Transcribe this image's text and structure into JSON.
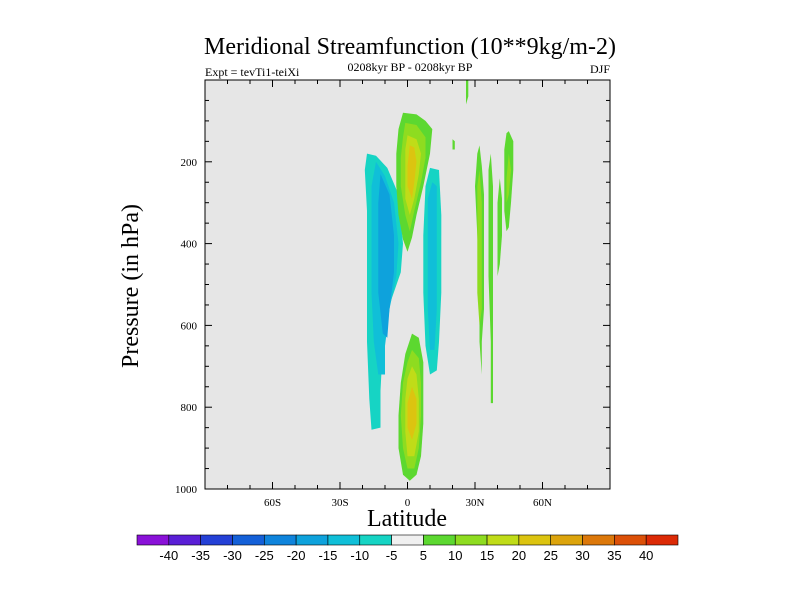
{
  "chart_data": {
    "type": "heatmap",
    "title": "Meridional Streamfunction (10**9kg/m-2)",
    "left_label": "Expt = tevTi1-teiXi",
    "center_label": "0208kyr BP - 0208kyr BP",
    "right_label": "DJF",
    "xlabel": "Latitude",
    "ylabel": "Pressure (in hPa)",
    "xlim": [
      -90,
      90
    ],
    "ylim": [
      1000,
      0
    ],
    "x_ticks": [
      {
        "value": -60,
        "label": "60S"
      },
      {
        "value": -30,
        "label": "30S"
      },
      {
        "value": 0,
        "label": "0"
      },
      {
        "value": 30,
        "label": "30N"
      },
      {
        "value": 60,
        "label": "60N"
      }
    ],
    "y_ticks": [
      {
        "value": 200,
        "label": "200"
      },
      {
        "value": 400,
        "label": "400"
      },
      {
        "value": 600,
        "label": "600"
      },
      {
        "value": 800,
        "label": "800"
      },
      {
        "value": 1000,
        "label": "1000"
      }
    ],
    "background_color": "#e6e6e6",
    "colorbar": {
      "levels": [
        "-40",
        "-35",
        "-30",
        "-25",
        "-20",
        "-15",
        "-10",
        "-5",
        "5",
        "10",
        "15",
        "20",
        "25",
        "30",
        "35",
        "40"
      ],
      "colors": [
        "#8a11d8",
        "#5a1fd6",
        "#2440d6",
        "#1460d8",
        "#0f84dc",
        "#0ea2dc",
        "#10bfd8",
        "#16d4c4",
        "#f0f0f0",
        "#5cd830",
        "#8edc20",
        "#c0dc18",
        "#dcc410",
        "#dca40c",
        "#dc780a",
        "#dc5008",
        "#dc2a06"
      ]
    },
    "contours": [
      {
        "name": "sh-neg-upper-cell",
        "levels": [
          {
            "value": -5,
            "points": [
              [
                -18,
                180
              ],
              [
                -14,
                185
              ],
              [
                -9,
                215
              ],
              [
                -4,
                280
              ],
              [
                -2,
                400
              ],
              [
                -3,
                470
              ],
              [
                -8,
                550
              ],
              [
                -11,
                650
              ],
              [
                -12,
                760
              ],
              [
                -12,
                850
              ],
              [
                -16,
                855
              ],
              [
                -17,
                780
              ],
              [
                -18,
                640
              ],
              [
                -18,
                480
              ],
              [
                -18,
                320
              ],
              [
                -19,
                220
              ]
            ]
          },
          {
            "value": -10,
            "points": [
              [
                -14,
                200
              ],
              [
                -10,
                235
              ],
              [
                -6,
                300
              ],
              [
                -4,
                400
              ],
              [
                -5,
                480
              ],
              [
                -8,
                560
              ],
              [
                -10,
                650
              ],
              [
                -10,
                720
              ],
              [
                -13,
                720
              ],
              [
                -15,
                640
              ],
              [
                -16,
                520
              ],
              [
                -16,
                380
              ],
              [
                -16,
                260
              ]
            ]
          },
          {
            "value": -15,
            "points": [
              [
                -12,
                230
              ],
              [
                -8,
                280
              ],
              [
                -6,
                380
              ],
              [
                -6,
                470
              ],
              [
                -8,
                560
              ],
              [
                -9,
                630
              ],
              [
                -11,
                620
              ],
              [
                -13,
                520
              ],
              [
                -13,
                400
              ],
              [
                -13,
                300
              ]
            ]
          }
        ]
      },
      {
        "name": "nh-neg-cell",
        "levels": [
          {
            "value": -5,
            "points": [
              [
                10,
                215
              ],
              [
                14,
                220
              ],
              [
                15,
                330
              ],
              [
                15,
                520
              ],
              [
                14,
                640
              ],
              [
                13,
                710
              ],
              [
                10,
                720
              ],
              [
                8,
                650
              ],
              [
                7,
                520
              ],
              [
                7,
                380
              ],
              [
                8,
                260
              ]
            ]
          },
          {
            "value": -10,
            "points": [
              [
                11,
                250
              ],
              [
                13,
                260
              ],
              [
                13,
                400
              ],
              [
                13,
                560
              ],
              [
                12,
                660
              ],
              [
                10,
                660
              ],
              [
                9,
                560
              ],
              [
                9,
                400
              ],
              [
                9,
                290
              ]
            ]
          }
        ]
      },
      {
        "name": "upper-pos-cell",
        "levels": [
          {
            "value": 5,
            "points": [
              [
                -2,
                80
              ],
              [
                4,
                84
              ],
              [
                8,
                100
              ],
              [
                11,
                120
              ],
              [
                10,
                180
              ],
              [
                7,
                260
              ],
              [
                4,
                330
              ],
              [
                2,
                385
              ],
              [
                0,
                420
              ],
              [
                -2,
                390
              ],
              [
                -4,
                330
              ],
              [
                -5,
                260
              ],
              [
                -5,
                180
              ],
              [
                -4,
                120
              ]
            ]
          },
          {
            "value": 10,
            "points": [
              [
                -1,
                105
              ],
              [
                4,
                110
              ],
              [
                8,
                140
              ],
              [
                8,
                190
              ],
              [
                6,
                250
              ],
              [
                3,
                320
              ],
              [
                1,
                370
              ],
              [
                -1,
                330
              ],
              [
                -3,
                260
              ],
              [
                -3,
                190
              ],
              [
                -2,
                140
              ]
            ]
          },
          {
            "value": 15,
            "points": [
              [
                0,
                135
              ],
              [
                4,
                145
              ],
              [
                6,
                180
              ],
              [
                5,
                230
              ],
              [
                3,
                290
              ],
              [
                1,
                330
              ],
              [
                -1,
                290
              ],
              [
                -1,
                230
              ],
              [
                -1,
                170
              ]
            ]
          },
          {
            "value": 20,
            "points": [
              [
                1,
                160
              ],
              [
                3,
                165
              ],
              [
                4,
                200
              ],
              [
                3,
                250
              ],
              [
                2,
                290
              ],
              [
                0,
                260
              ],
              [
                0,
                210
              ]
            ]
          }
        ]
      },
      {
        "name": "lower-pos-cell",
        "levels": [
          {
            "value": 5,
            "points": [
              [
                2,
                620
              ],
              [
                5,
                630
              ],
              [
                7,
                690
              ],
              [
                7,
                760
              ],
              [
                7,
                840
              ],
              [
                6,
                920
              ],
              [
                4,
                965
              ],
              [
                1,
                980
              ],
              [
                -2,
                965
              ],
              [
                -4,
                900
              ],
              [
                -4,
                820
              ],
              [
                -3,
                740
              ],
              [
                -1,
                670
              ]
            ]
          },
          {
            "value": 10,
            "points": [
              [
                2,
                660
              ],
              [
                5,
                680
              ],
              [
                6,
                740
              ],
              [
                6,
                820
              ],
              [
                5,
                900
              ],
              [
                3,
                950
              ],
              [
                0,
                950
              ],
              [
                -2,
                900
              ],
              [
                -3,
                820
              ],
              [
                -2,
                740
              ],
              [
                0,
                690
              ]
            ]
          },
          {
            "value": 15,
            "points": [
              [
                2,
                700
              ],
              [
                4,
                720
              ],
              [
                5,
                780
              ],
              [
                5,
                860
              ],
              [
                3,
                920
              ],
              [
                0,
                920
              ],
              [
                -1,
                860
              ],
              [
                -1,
                780
              ],
              [
                0,
                730
              ]
            ]
          },
          {
            "value": 20,
            "points": [
              [
                2,
                750
              ],
              [
                4,
                780
              ],
              [
                4,
                840
              ],
              [
                2,
                880
              ],
              [
                0,
                850
              ],
              [
                0,
                790
              ]
            ]
          }
        ]
      },
      {
        "name": "nh-pos-streak-a",
        "levels": [
          {
            "value": 5,
            "points": [
              [
                33,
                210
              ],
              [
                34,
                280
              ],
              [
                34,
                420
              ],
              [
                34,
                560
              ],
              [
                33,
                640
              ],
              [
                33,
                720
              ],
              [
                32,
                640
              ],
              [
                32,
                500
              ],
              [
                31,
                380
              ],
              [
                30,
                260
              ],
              [
                31,
                180
              ],
              [
                32,
                160
              ]
            ]
          },
          {
            "value": 10,
            "points": [
              [
                32,
                220
              ],
              [
                33,
                300
              ],
              [
                33,
                420
              ],
              [
                33,
                560
              ],
              [
                32,
                600
              ],
              [
                31,
                520
              ],
              [
                31,
                380
              ],
              [
                31,
                260
              ]
            ]
          }
        ]
      },
      {
        "name": "nh-pos-streak-b",
        "levels": [
          {
            "value": 5,
            "points": [
              [
                37,
                180
              ],
              [
                38,
                260
              ],
              [
                38,
                400
              ],
              [
                38,
                540
              ],
              [
                38,
                680
              ],
              [
                38,
                790
              ],
              [
                37,
                790
              ],
              [
                37,
                640
              ],
              [
                36,
                480
              ],
              [
                36,
                340
              ],
              [
                36,
                220
              ]
            ]
          }
        ]
      },
      {
        "name": "nh-pos-streak-c",
        "levels": [
          {
            "value": 5,
            "points": [
              [
                45,
                125
              ],
              [
                47,
                150
              ],
              [
                47,
                220
              ],
              [
                46,
                300
              ],
              [
                45,
                360
              ],
              [
                44,
                370
              ],
              [
                43,
                320
              ],
              [
                43,
                240
              ],
              [
                43,
                170
              ],
              [
                44,
                130
              ]
            ]
          },
          {
            "value": 10,
            "points": [
              [
                45,
                180
              ],
              [
                46,
                220
              ],
              [
                45,
                280
              ],
              [
                44,
                300
              ],
              [
                44,
                240
              ]
            ]
          }
        ]
      },
      {
        "name": "nh-pos-streak-d",
        "levels": [
          {
            "value": 5,
            "points": [
              [
                41,
                240
              ],
              [
                42,
                290
              ],
              [
                42,
                380
              ],
              [
                41,
                450
              ],
              [
                40,
                480
              ],
              [
                40,
                400
              ],
              [
                40,
                300
              ]
            ]
          }
        ]
      },
      {
        "name": "top-pos-sliver",
        "levels": [
          {
            "value": 5,
            "points": [
              [
                26,
                0
              ],
              [
                27,
                0
              ],
              [
                27,
                40
              ],
              [
                26,
                60
              ],
              [
                26,
                30
              ]
            ]
          }
        ]
      },
      {
        "name": "small-pos-dot",
        "levels": [
          {
            "value": 5,
            "points": [
              [
                20,
                145
              ],
              [
                21,
                150
              ],
              [
                21,
                170
              ],
              [
                20,
                170
              ]
            ]
          }
        ]
      }
    ]
  }
}
